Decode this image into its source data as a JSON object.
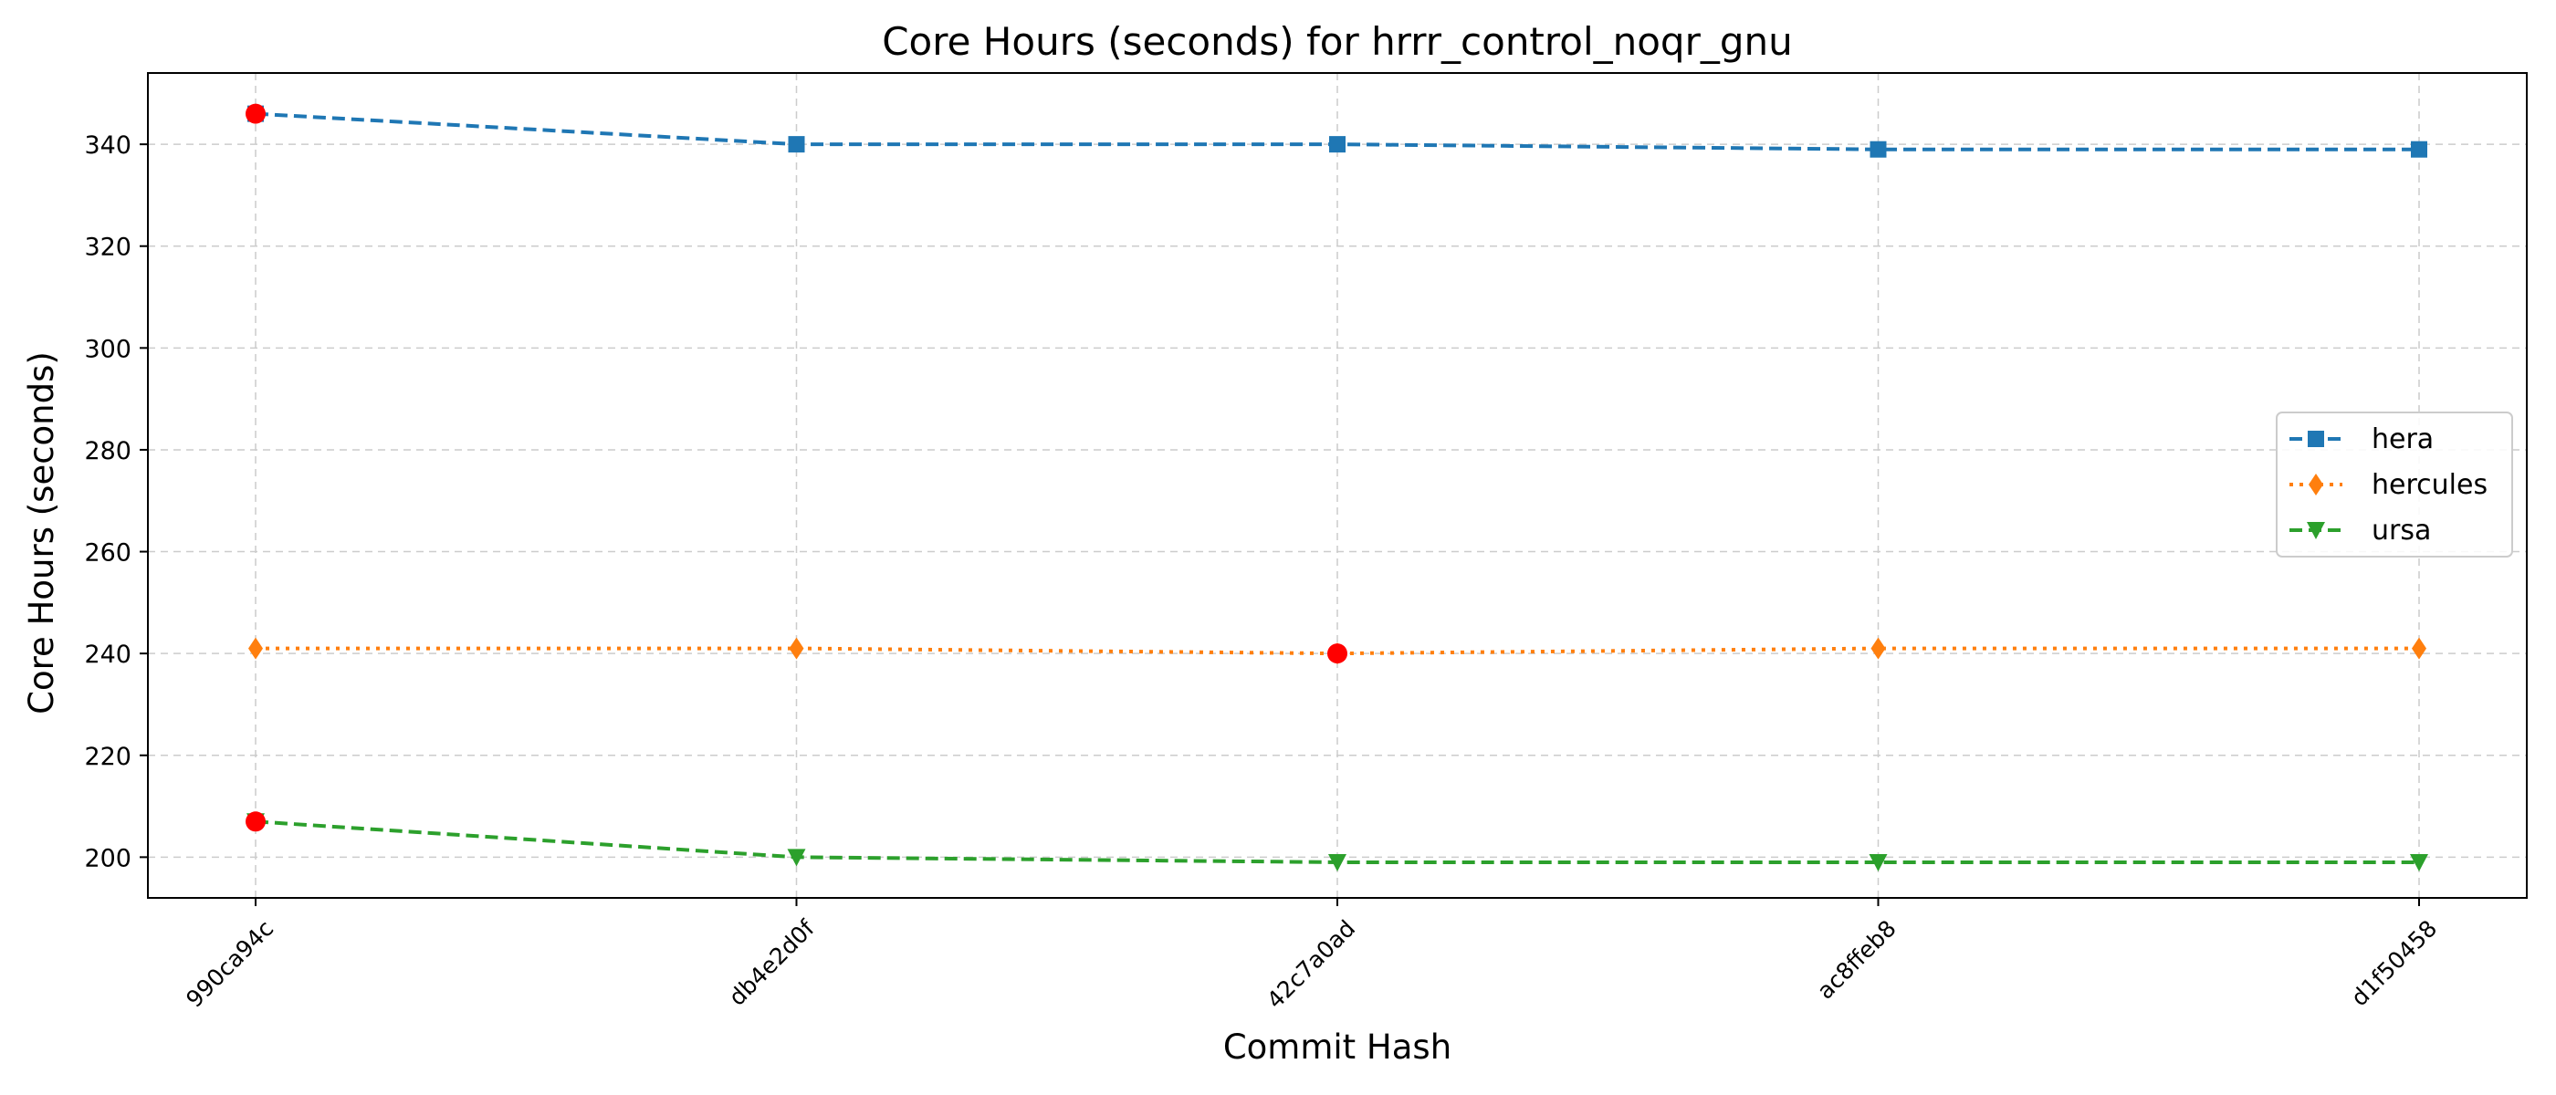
{
  "chart_data": {
    "type": "line",
    "title": "Core Hours (seconds) for hrrr_control_noqr_gnu",
    "xlabel": "Commit Hash",
    "ylabel": "Core Hours (seconds)",
    "categories": [
      "990ca94c",
      "db4e2d0f",
      "42c7a0ad",
      "ac8ffeb8",
      "d1f50458"
    ],
    "ylim": [
      192,
      354
    ],
    "yticks": [
      200,
      220,
      240,
      260,
      280,
      300,
      320,
      340
    ],
    "grid": true,
    "legend_position": "center-right",
    "series": [
      {
        "name": "hera",
        "values": [
          346,
          340,
          340,
          339,
          339
        ],
        "color": "#1f77b4",
        "marker": "square",
        "linestyle": "dashed"
      },
      {
        "name": "hercules",
        "values": [
          241,
          241,
          240,
          241,
          241
        ],
        "color": "#ff7f0e",
        "marker": "thin-diamond",
        "linestyle": "dotted"
      },
      {
        "name": "ursa",
        "values": [
          207,
          200,
          199,
          199,
          199
        ],
        "color": "#2ca02c",
        "marker": "triangle-down",
        "linestyle": "dashed"
      }
    ],
    "highlighted_points": [
      {
        "series": "hera",
        "category": "990ca94c",
        "value": 346
      },
      {
        "series": "hercules",
        "category": "42c7a0ad",
        "value": 240
      },
      {
        "series": "ursa",
        "category": "990ca94c",
        "value": 207
      }
    ],
    "highlight_color": "#ff0000"
  }
}
